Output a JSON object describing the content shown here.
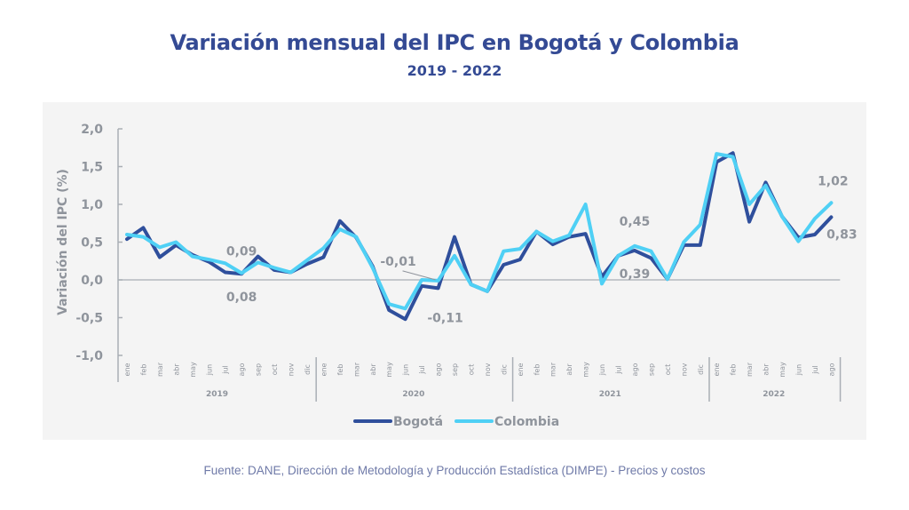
{
  "header": {
    "title": "Variación mensual del IPC en Bogotá y Colombia",
    "subtitle": "2019 - 2022"
  },
  "footer": {
    "source": "Fuente: DANE, Dirección de Metodología y Producción Estadística (DIMPE) - Precios y costos"
  },
  "colors": {
    "title": "#344a94",
    "bogota": "#2f4f9c",
    "colombia": "#4fd0f5",
    "axis_text": "#8f949c",
    "axis_line": "#a9aeb5",
    "panel": "#f4f4f4"
  },
  "chart_data": {
    "type": "line",
    "title": "Variación mensual del IPC en Bogotá y Colombia",
    "subtitle": "2019 - 2022",
    "xlabel": "",
    "ylabel": "Variación del IPC (%)",
    "ylim": [
      -1.0,
      2.0
    ],
    "yticks": [
      2.0,
      1.5,
      1.0,
      0.5,
      0.0,
      -0.5,
      -1.0
    ],
    "ytick_labels": [
      "2,0",
      "1,5",
      "1,0",
      "0,5",
      "0,0",
      "-0,5",
      "-1,0"
    ],
    "grid": false,
    "legend_position": "bottom-center",
    "years": [
      {
        "label": "2019",
        "months": [
          "ene",
          "feb",
          "mar",
          "abr",
          "may",
          "jun",
          "jul",
          "ago",
          "sep",
          "oct",
          "nov",
          "dic"
        ]
      },
      {
        "label": "2020",
        "months": [
          "ene",
          "feb",
          "mar",
          "abr",
          "may",
          "jun",
          "jul",
          "ago",
          "sep",
          "oct",
          "nov",
          "dic"
        ]
      },
      {
        "label": "2021",
        "months": [
          "ene",
          "feb",
          "mar",
          "abr",
          "may",
          "jun",
          "jul",
          "ago",
          "sep",
          "oct",
          "nov",
          "dic"
        ]
      },
      {
        "label": "2022",
        "months": [
          "ene",
          "feb",
          "mar",
          "abr",
          "may",
          "jun",
          "jul",
          "ago"
        ]
      }
    ],
    "series": [
      {
        "name": "Bogotá",
        "color": "#2f4f9c",
        "values": [
          0.54,
          0.69,
          0.3,
          0.46,
          0.33,
          0.24,
          0.1,
          0.08,
          0.31,
          0.13,
          0.1,
          0.21,
          0.3,
          0.78,
          0.56,
          0.18,
          -0.4,
          -0.52,
          -0.08,
          -0.11,
          0.57,
          -0.06,
          -0.15,
          0.2,
          0.27,
          0.64,
          0.47,
          0.57,
          0.61,
          0.04,
          0.32,
          0.39,
          0.29,
          0.01,
          0.46,
          0.46,
          1.56,
          1.68,
          0.77,
          1.29,
          0.84,
          0.56,
          0.6,
          0.83
        ]
      },
      {
        "name": "Colombia",
        "color": "#4fd0f5",
        "values": [
          0.6,
          0.57,
          0.43,
          0.5,
          0.31,
          0.27,
          0.22,
          0.09,
          0.23,
          0.16,
          0.1,
          0.26,
          0.42,
          0.67,
          0.57,
          0.16,
          -0.32,
          -0.38,
          0.0,
          -0.01,
          0.32,
          -0.06,
          -0.15,
          0.38,
          0.41,
          0.64,
          0.51,
          0.59,
          1.0,
          -0.05,
          0.32,
          0.45,
          0.38,
          0.01,
          0.5,
          0.73,
          1.67,
          1.63,
          1.0,
          1.25,
          0.84,
          0.51,
          0.81,
          1.02
        ]
      }
    ],
    "annotations": [
      {
        "text": "0,09",
        "series": "Colombia",
        "index": 7,
        "placement": "above"
      },
      {
        "text": "0,08",
        "series": "Bogotá",
        "index": 7,
        "placement": "below"
      },
      {
        "text": "-0,01",
        "series": "Colombia",
        "index": 19,
        "placement": "above-left-leader"
      },
      {
        "text": "-0,11",
        "series": "Bogotá",
        "index": 19,
        "placement": "below"
      },
      {
        "text": "0,45",
        "series": "Colombia",
        "index": 31,
        "placement": "above"
      },
      {
        "text": "0,39",
        "series": "Bogotá",
        "index": 31,
        "placement": "below"
      },
      {
        "text": "1,02",
        "series": "Colombia",
        "index": 43,
        "placement": "above"
      },
      {
        "text": "0,83",
        "series": "Bogotá",
        "index": 43,
        "placement": "below"
      }
    ]
  }
}
